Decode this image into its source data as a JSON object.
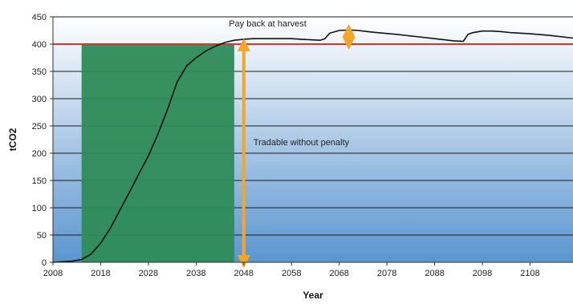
{
  "chart_data": {
    "type": "line",
    "title": "",
    "xlabel": "Year",
    "ylabel": "tCO2",
    "xlim": [
      2008,
      2117
    ],
    "ylim": [
      0,
      450
    ],
    "x_ticks": [
      2008,
      2018,
      2028,
      2038,
      2048,
      2058,
      2068,
      2078,
      2088,
      2098,
      2108
    ],
    "y_ticks": [
      0,
      50,
      100,
      150,
      200,
      250,
      300,
      350,
      400,
      450
    ],
    "grid": true,
    "legend": "none",
    "series": [
      {
        "x": [
          2008,
          2012,
          2014,
          2016,
          2018,
          2020,
          2022,
          2024,
          2026,
          2028,
          2030,
          2032,
          2034,
          2036,
          2038,
          2040,
          2042,
          2044,
          2046,
          2048,
          2050,
          2052,
          2054,
          2056,
          2058,
          2060,
          2062,
          2064,
          2065,
          2066,
          2068,
          2070,
          2072,
          2074,
          2076,
          2080,
          2084,
          2088,
          2092,
          2094,
          2095,
          2096,
          2098,
          2100,
          2102,
          2104,
          2108,
          2112,
          2117
        ],
        "y": [
          0,
          2,
          5,
          15,
          35,
          62,
          95,
          128,
          162,
          195,
          235,
          280,
          330,
          360,
          375,
          387,
          396,
          403,
          407,
          409,
          410,
          410,
          410,
          410,
          410,
          409,
          408,
          407,
          410,
          420,
          425,
          426,
          425,
          423,
          421,
          418,
          414,
          410,
          406,
          405,
          418,
          421,
          424,
          424,
          423,
          421,
          419,
          416,
          411
        ]
      }
    ],
    "threshold": {
      "y": 400,
      "color": "#d9342b"
    },
    "shaded_region": {
      "x_start": 2014,
      "x_end": 2046,
      "y_top": 400,
      "color": "#2e8b57"
    },
    "arrows": [
      {
        "x": 2048,
        "y_from": 0,
        "y_to": 400,
        "color": "#f5a623"
      },
      {
        "x": 2070,
        "y_from": 400,
        "y_to": 426,
        "color": "#f5a623"
      }
    ],
    "annotations": [
      {
        "text": "Pay back at harvest",
        "x": 2053,
        "y": 432
      },
      {
        "text": "Tradable without penalty",
        "x": 2050,
        "y": 215
      }
    ],
    "colors": {
      "plot_gradient_top": "#ffffff",
      "plot_gradient_bottom": "#5a95cf",
      "line": "#111111",
      "grid": "#1a1a1a"
    }
  }
}
